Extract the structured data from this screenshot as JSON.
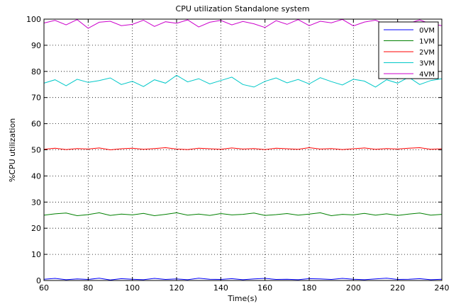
{
  "chart_data": {
    "type": "line",
    "title": "CPU utilization Standalone system",
    "xlabel": "Time(s)",
    "ylabel": "%CPU utilization",
    "xlim": [
      60,
      240
    ],
    "ylim": [
      0,
      100
    ],
    "xticks": [
      60,
      80,
      100,
      120,
      140,
      160,
      180,
      200,
      220,
      240
    ],
    "yticks": [
      0,
      10,
      20,
      30,
      40,
      50,
      60,
      70,
      80,
      90,
      100
    ],
    "grid": true,
    "legend_position": "top-right",
    "series": [
      {
        "name": "0VM",
        "color": "#0000ff",
        "x": [
          60,
          65,
          70,
          75,
          80,
          85,
          90,
          95,
          100,
          105,
          110,
          115,
          120,
          125,
          130,
          135,
          140,
          145,
          150,
          155,
          160,
          165,
          170,
          175,
          180,
          185,
          190,
          195,
          200,
          205,
          210,
          215,
          220,
          225,
          230,
          235,
          240
        ],
        "y": [
          0.5,
          0.8,
          0.3,
          0.6,
          0.4,
          0.9,
          0.2,
          0.7,
          0.5,
          0.3,
          0.8,
          0.4,
          0.6,
          0.3,
          0.9,
          0.5,
          0.4,
          0.7,
          0.3,
          0.6,
          0.8,
          0.4,
          0.5,
          0.3,
          0.7,
          0.6,
          0.4,
          0.8,
          0.5,
          0.3,
          0.6,
          0.9,
          0.4,
          0.5,
          0.7,
          0.3,
          0.5
        ]
      },
      {
        "name": "1VM",
        "color": "#008000",
        "x": [
          60,
          65,
          70,
          75,
          80,
          85,
          90,
          95,
          100,
          105,
          110,
          115,
          120,
          125,
          130,
          135,
          140,
          145,
          150,
          155,
          160,
          165,
          170,
          175,
          180,
          185,
          190,
          195,
          200,
          205,
          210,
          215,
          220,
          225,
          230,
          235,
          240
        ],
        "y": [
          25,
          25.5,
          25.8,
          24.8,
          25.2,
          25.9,
          24.9,
          25.4,
          25.1,
          25.7,
          24.8,
          25.3,
          25.9,
          25.0,
          25.4,
          24.9,
          25.6,
          25.1,
          25.3,
          25.8,
          24.9,
          25.2,
          25.6,
          25.0,
          25.4,
          25.9,
          24.8,
          25.3,
          25.1,
          25.7,
          25.0,
          25.5,
          24.9,
          25.4,
          25.8,
          25.0,
          25.3
        ]
      },
      {
        "name": "2VM",
        "color": "#ff0000",
        "x": [
          60,
          65,
          70,
          75,
          80,
          85,
          90,
          95,
          100,
          105,
          110,
          115,
          120,
          125,
          130,
          135,
          140,
          145,
          150,
          155,
          160,
          165,
          170,
          175,
          180,
          185,
          190,
          195,
          200,
          205,
          210,
          215,
          220,
          225,
          230,
          235,
          240
        ],
        "y": [
          50.2,
          50.6,
          50.1,
          50.5,
          50.3,
          50.7,
          50.0,
          50.4,
          50.6,
          50.2,
          50.5,
          50.8,
          50.3,
          50.1,
          50.6,
          50.4,
          50.2,
          50.7,
          50.3,
          50.5,
          50.1,
          50.6,
          50.4,
          50.2,
          50.8,
          50.3,
          50.5,
          50.1,
          50.4,
          50.7,
          50.2,
          50.5,
          50.3,
          50.6,
          50.8,
          50.2,
          50.4
        ]
      },
      {
        "name": "3VM",
        "color": "#00c8c8",
        "x": [
          60,
          65,
          70,
          75,
          80,
          85,
          90,
          95,
          100,
          105,
          110,
          115,
          120,
          125,
          130,
          135,
          140,
          145,
          150,
          155,
          160,
          165,
          170,
          175,
          180,
          185,
          190,
          195,
          200,
          205,
          210,
          215,
          220,
          225,
          230,
          235,
          240
        ],
        "y": [
          75.5,
          76.8,
          74.5,
          77.0,
          75.8,
          76.5,
          77.5,
          75.0,
          76.2,
          74.2,
          76.8,
          75.5,
          78.5,
          76.0,
          77.2,
          75.2,
          76.5,
          77.8,
          75.0,
          74.0,
          76.2,
          77.5,
          75.6,
          76.9,
          75.2,
          77.6,
          76.1,
          74.8,
          77.0,
          76.3,
          74.0,
          76.8,
          75.5,
          77.8,
          75.0,
          76.5,
          77.2
        ]
      },
      {
        "name": "4VM",
        "color": "#cc00cc",
        "x": [
          60,
          65,
          70,
          75,
          80,
          85,
          90,
          95,
          100,
          105,
          110,
          115,
          120,
          125,
          130,
          135,
          140,
          145,
          150,
          155,
          160,
          165,
          170,
          175,
          180,
          185,
          190,
          195,
          200,
          205,
          210,
          215,
          220,
          225,
          230,
          235,
          240
        ],
        "y": [
          98.5,
          99.5,
          97.8,
          99.8,
          96.5,
          98.8,
          99.2,
          97.5,
          98.0,
          99.6,
          97.2,
          99.0,
          98.4,
          99.7,
          97.0,
          98.8,
          99.5,
          97.8,
          99.1,
          98.2,
          96.8,
          99.4,
          98.0,
          99.8,
          97.5,
          99.2,
          98.6,
          99.9,
          97.4,
          98.9,
          99.6,
          97.8,
          99.0,
          98.4,
          99.7,
          98.2,
          97.5
        ]
      }
    ]
  }
}
